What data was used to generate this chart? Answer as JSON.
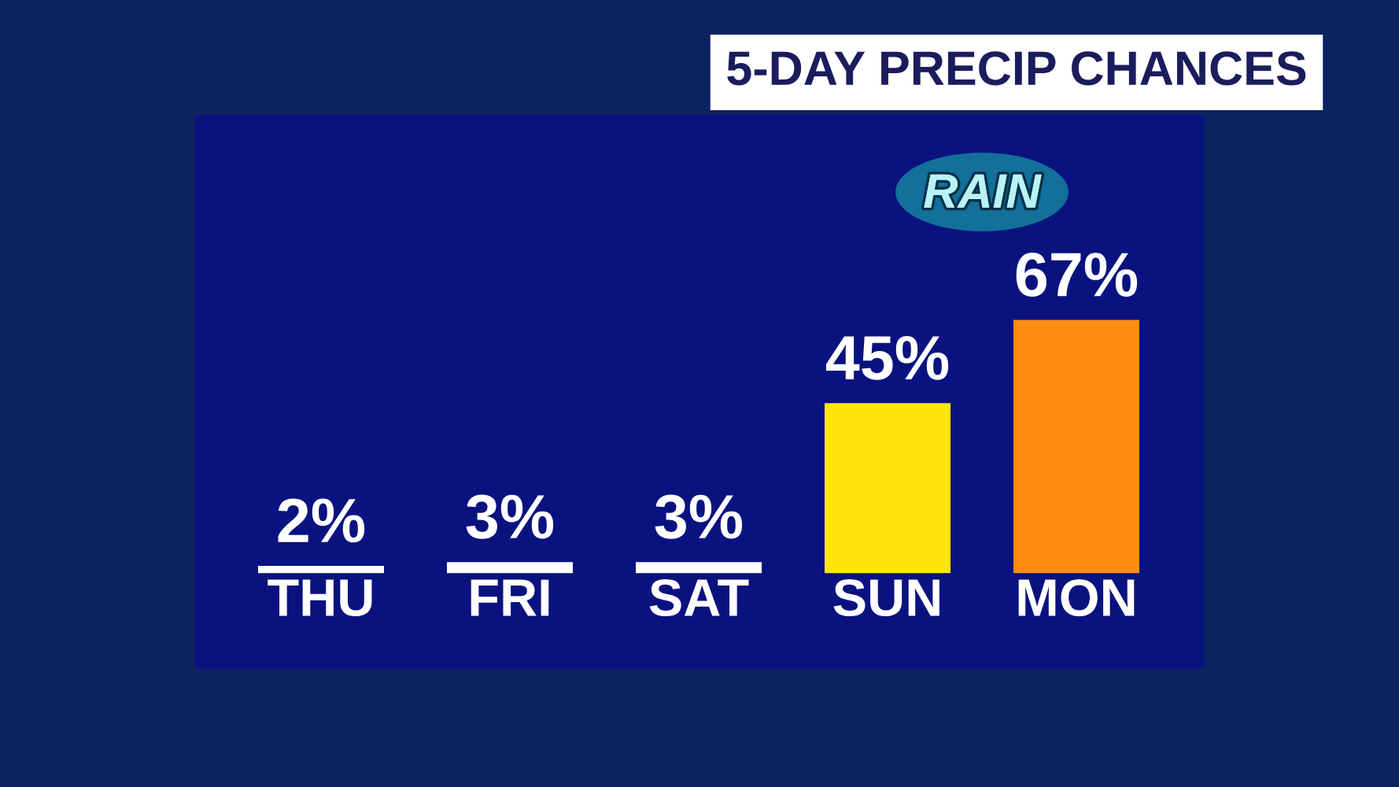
{
  "chart_data": {
    "type": "bar",
    "title": "5-DAY PRECIP CHANCES",
    "categories": [
      "THU",
      "FRI",
      "SAT",
      "SUN",
      "MON"
    ],
    "values": [
      2,
      3,
      3,
      45,
      67
    ],
    "colors": [
      "#ffffff",
      "#ffffff",
      "#ffffff",
      "#ffe50c",
      "#ff8c10"
    ],
    "value_labels": [
      "2%",
      "3%",
      "3%",
      "45%",
      "67%"
    ],
    "annotations": [
      "RAIN"
    ]
  }
}
